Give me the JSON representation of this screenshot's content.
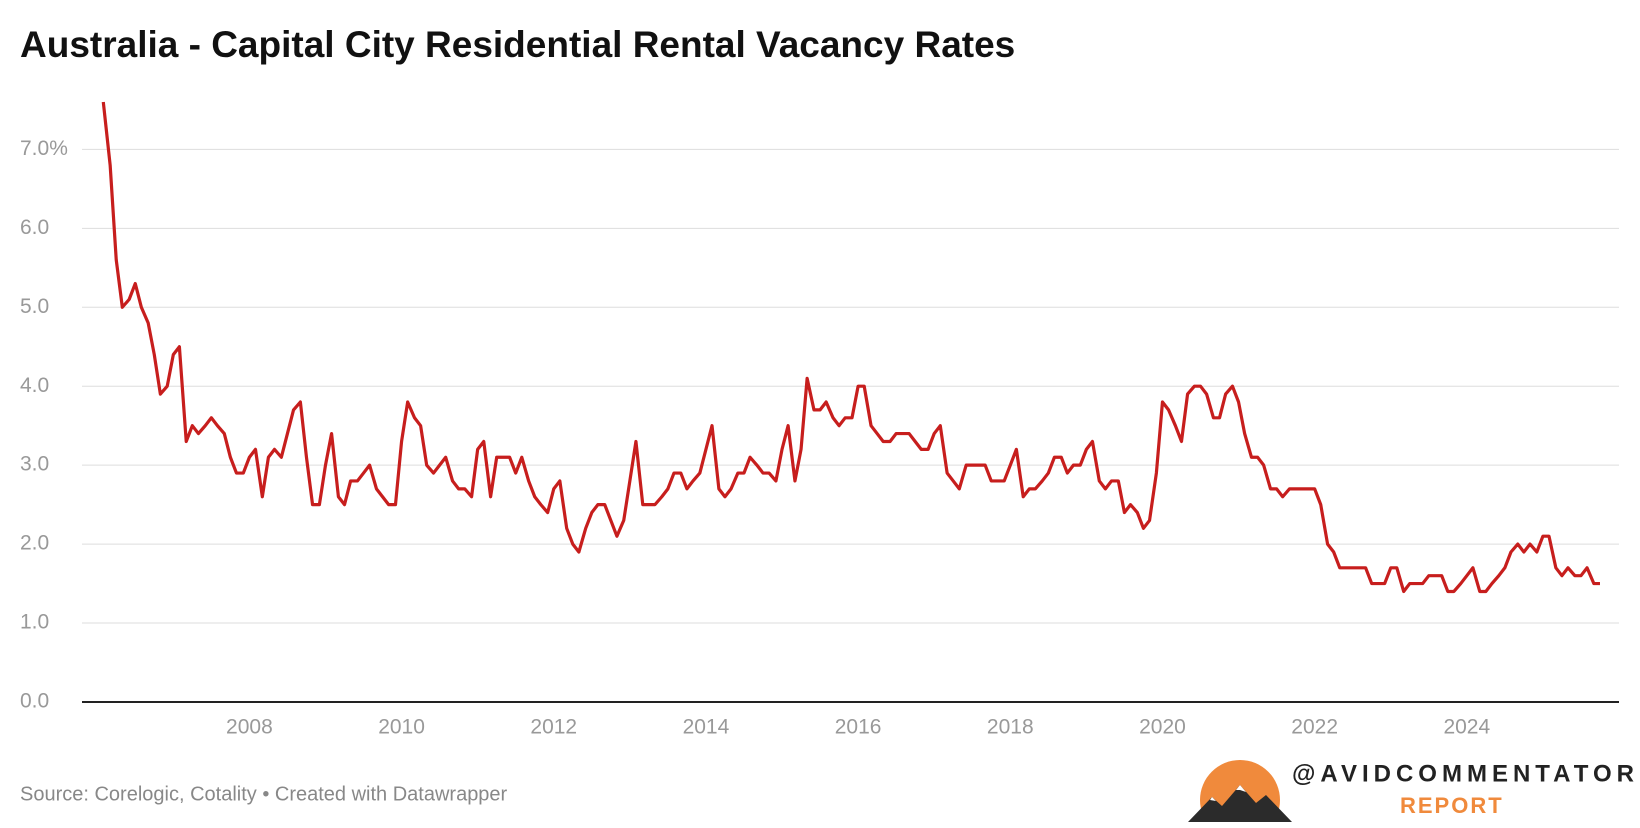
{
  "chart_data": {
    "type": "line",
    "title": "Australia - Capital City Residential Rental Vacancy Rates",
    "source": "Source: Corelogic, Cotality • Created with Datawrapper",
    "color": "#c71e1d",
    "grid": true,
    "x": [
      2006.08,
      2006.17,
      2006.25,
      2006.33,
      2006.42,
      2006.5,
      2006.58,
      2006.67,
      2006.75,
      2006.83,
      2006.92,
      2007,
      2007.08,
      2007.17,
      2007.25,
      2007.33,
      2007.42,
      2007.5,
      2007.58,
      2007.67,
      2007.75,
      2007.83,
      2007.92,
      2008,
      2008.08,
      2008.17,
      2008.25,
      2008.33,
      2008.42,
      2008.5,
      2008.58,
      2008.67,
      2008.75,
      2008.83,
      2008.92,
      2009,
      2009.08,
      2009.17,
      2009.25,
      2009.33,
      2009.42,
      2009.5,
      2009.58,
      2009.67,
      2009.75,
      2009.83,
      2009.92,
      2010,
      2010.08,
      2010.17,
      2010.25,
      2010.33,
      2010.42,
      2010.5,
      2010.58,
      2010.67,
      2010.75,
      2010.83,
      2010.92,
      2011,
      2011.08,
      2011.17,
      2011.25,
      2011.33,
      2011.42,
      2011.5,
      2011.58,
      2011.67,
      2011.75,
      2011.83,
      2011.92,
      2012,
      2012.08,
      2012.17,
      2012.25,
      2012.33,
      2012.42,
      2012.5,
      2012.58,
      2012.67,
      2012.75,
      2012.83,
      2012.92,
      2013,
      2013.08,
      2013.17,
      2013.25,
      2013.33,
      2013.42,
      2013.5,
      2013.58,
      2013.67,
      2013.75,
      2013.83,
      2013.92,
      2014,
      2014.08,
      2014.17,
      2014.25,
      2014.33,
      2014.42,
      2014.5,
      2014.58,
      2014.67,
      2014.75,
      2014.83,
      2014.92,
      2015,
      2015.08,
      2015.17,
      2015.25,
      2015.33,
      2015.42,
      2015.5,
      2015.58,
      2015.67,
      2015.75,
      2015.83,
      2015.92,
      2016,
      2016.08,
      2016.17,
      2016.25,
      2016.33,
      2016.42,
      2016.5,
      2016.58,
      2016.67,
      2016.75,
      2016.83,
      2016.92,
      2017,
      2017.08,
      2017.17,
      2017.25,
      2017.33,
      2017.42,
      2017.5,
      2017.58,
      2017.67,
      2017.75,
      2017.83,
      2017.92,
      2018,
      2018.08,
      2018.17,
      2018.25,
      2018.33,
      2018.42,
      2018.5,
      2018.58,
      2018.67,
      2018.75,
      2018.83,
      2018.92,
      2019,
      2019.08,
      2019.17,
      2019.25,
      2019.33,
      2019.42,
      2019.5,
      2019.58,
      2019.67,
      2019.75,
      2019.83,
      2019.92,
      2020,
      2020.08,
      2020.17,
      2020.25,
      2020.33,
      2020.42,
      2020.5,
      2020.58,
      2020.67,
      2020.75,
      2020.83,
      2020.92,
      2021,
      2021.08,
      2021.17,
      2021.25,
      2021.33,
      2021.42,
      2021.5,
      2021.58,
      2021.67,
      2021.75,
      2021.83,
      2021.92,
      2022,
      2022.08,
      2022.17,
      2022.25,
      2022.33,
      2022.42,
      2022.5,
      2022.58,
      2022.67,
      2022.75,
      2022.83,
      2022.92,
      2023,
      2023.08,
      2023.17,
      2023.25,
      2023.33,
      2023.42,
      2023.5,
      2023.58,
      2023.67,
      2023.75,
      2023.83,
      2023.92,
      2024,
      2024.08,
      2024.17,
      2024.25,
      2024.33,
      2024.42,
      2024.5,
      2024.58,
      2024.67,
      2024.75,
      2024.83,
      2024.92,
      2025,
      2025.08,
      2025.17,
      2025.25,
      2025.33,
      2025.42,
      2025.5,
      2025.58,
      2025.67,
      2025.75
    ],
    "values": [
      7.6,
      6.8,
      5.6,
      5.0,
      5.1,
      5.3,
      5.0,
      4.8,
      4.4,
      3.9,
      4.0,
      4.4,
      4.5,
      3.3,
      3.5,
      3.4,
      3.5,
      3.6,
      3.5,
      3.4,
      3.1,
      2.9,
      2.9,
      3.1,
      3.2,
      2.6,
      3.1,
      3.2,
      3.1,
      3.4,
      3.7,
      3.8,
      3.1,
      2.5,
      2.5,
      3.0,
      3.4,
      2.6,
      2.5,
      2.8,
      2.8,
      2.9,
      3.0,
      2.7,
      2.6,
      2.5,
      2.5,
      3.3,
      3.8,
      3.6,
      3.5,
      3.0,
      2.9,
      3.0,
      3.1,
      2.8,
      2.7,
      2.7,
      2.6,
      3.2,
      3.3,
      2.6,
      3.1,
      3.1,
      3.1,
      2.9,
      3.1,
      2.8,
      2.6,
      2.5,
      2.4,
      2.7,
      2.8,
      2.2,
      2.0,
      1.9,
      2.2,
      2.4,
      2.5,
      2.5,
      2.3,
      2.1,
      2.3,
      2.8,
      3.3,
      2.5,
      2.5,
      2.5,
      2.6,
      2.7,
      2.9,
      2.9,
      2.7,
      2.8,
      2.9,
      3.2,
      3.5,
      2.7,
      2.6,
      2.7,
      2.9,
      2.9,
      3.1,
      3.0,
      2.9,
      2.9,
      2.8,
      3.2,
      3.5,
      2.8,
      3.2,
      4.1,
      3.7,
      3.7,
      3.8,
      3.6,
      3.5,
      3.6,
      3.6,
      4.0,
      4.0,
      3.5,
      3.4,
      3.3,
      3.3,
      3.4,
      3.4,
      3.4,
      3.3,
      3.2,
      3.2,
      3.4,
      3.5,
      2.9,
      2.8,
      2.7,
      3.0,
      3.0,
      3.0,
      3.0,
      2.8,
      2.8,
      2.8,
      3.0,
      3.2,
      2.6,
      2.7,
      2.7,
      2.8,
      2.9,
      3.1,
      3.1,
      2.9,
      3.0,
      3.0,
      3.2,
      3.3,
      2.8,
      2.7,
      2.8,
      2.8,
      2.4,
      2.5,
      2.4,
      2.2,
      2.3,
      2.9,
      3.8,
      3.7,
      3.5,
      3.3,
      3.9,
      4.0,
      4.0,
      3.9,
      3.6,
      3.6,
      3.9,
      4.0,
      3.8,
      3.4,
      3.1,
      3.1,
      3.0,
      2.7,
      2.7,
      2.6,
      2.7,
      2.7,
      2.7,
      2.7,
      2.7,
      2.5,
      2.0,
      1.9,
      1.7,
      1.7,
      1.7,
      1.7,
      1.7,
      1.5,
      1.5,
      1.5,
      1.7,
      1.7,
      1.4,
      1.5,
      1.5,
      1.5,
      1.6,
      1.6,
      1.6,
      1.4,
      1.4,
      1.5,
      1.6,
      1.7,
      1.4,
      1.4,
      1.5,
      1.6,
      1.7,
      1.9,
      2.0,
      1.9,
      2.0,
      1.9,
      2.1,
      2.1,
      1.7,
      1.6,
      1.7,
      1.6,
      1.6,
      1.7,
      1.5,
      1.5
    ],
    "xlim": [
      2005.8,
      2026
    ],
    "xticks": [
      2008,
      2010,
      2012,
      2014,
      2016,
      2018,
      2020,
      2022,
      2024
    ],
    "ylim": [
      0,
      7.6
    ],
    "yticks": [
      {
        "value": 0,
        "label": "0.0"
      },
      {
        "value": 1,
        "label": "1.0"
      },
      {
        "value": 2,
        "label": "2.0"
      },
      {
        "value": 3,
        "label": "3.0"
      },
      {
        "value": 4,
        "label": "4.0"
      },
      {
        "value": 5,
        "label": "5.0"
      },
      {
        "value": 6,
        "label": "6.0"
      },
      {
        "value": 7,
        "label": "7.0%"
      }
    ]
  },
  "brand": {
    "handle": "@AVIDCOMMENTATOR",
    "tagline": "REPORT"
  }
}
